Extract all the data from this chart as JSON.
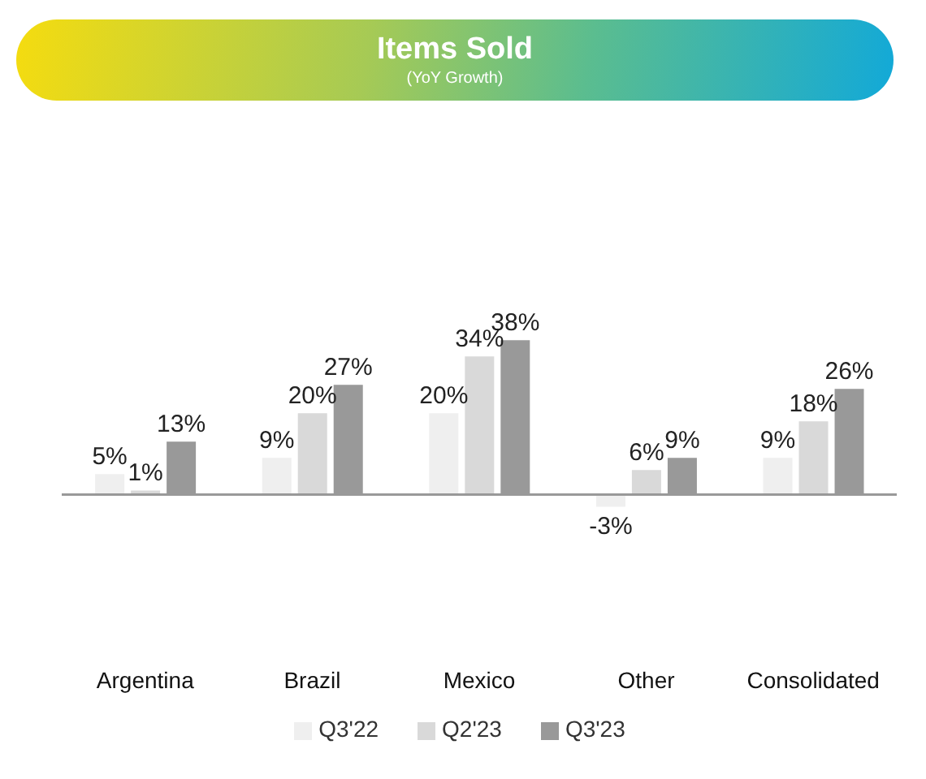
{
  "chart_data": {
    "type": "bar",
    "title": "Items Sold",
    "subtitle": "(YoY Growth)",
    "categories": [
      "Argentina",
      "Brazil",
      "Mexico",
      "Other",
      "Consolidated"
    ],
    "series": [
      {
        "name": "Q3'22",
        "color": "#efefef",
        "values": [
          5,
          9,
          20,
          -3,
          9
        ],
        "value_labels": [
          "5%",
          "9%",
          "20%",
          "-3%",
          "9%"
        ]
      },
      {
        "name": "Q2'23",
        "color": "#d9d9d9",
        "values": [
          1,
          20,
          34,
          6,
          18
        ],
        "value_labels": [
          "1%",
          "20%",
          "34%",
          "6%",
          "18%"
        ]
      },
      {
        "name": "Q3'23",
        "color": "#999999",
        "values": [
          13,
          27,
          38,
          9,
          26
        ],
        "value_labels": [
          "13%",
          "27%",
          "38%",
          "9%",
          "26%"
        ]
      }
    ],
    "legend": "bottom",
    "grid": false
  }
}
